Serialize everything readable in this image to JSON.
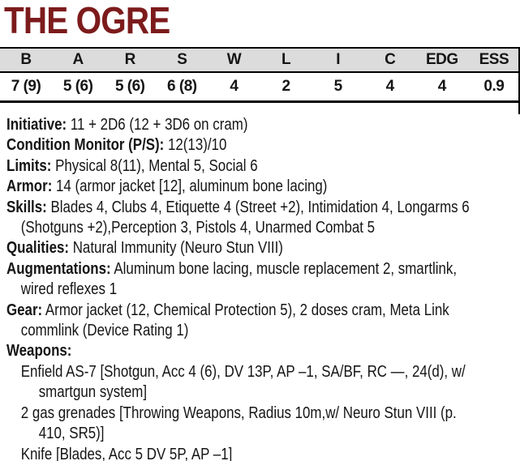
{
  "title": "THE OGRE",
  "colors": {
    "title_color": "#7c1b1c",
    "header_bg": "#dcdcdc",
    "border_color": "#000000",
    "text_color": "#151515"
  },
  "stat_table": {
    "headers": [
      "B",
      "A",
      "R",
      "S",
      "W",
      "L",
      "I",
      "C",
      "EDG",
      "ESS"
    ],
    "values": [
      "7 (9)",
      "5 (6)",
      "5 (6)",
      "6 (8)",
      "4",
      "2",
      "5",
      "4",
      "4",
      "0.9"
    ]
  },
  "lines": [
    {
      "label": "Initiative:",
      "text": " 11 + 2D6 (12 + 3D6 on cram)"
    },
    {
      "label": "Condition Monitor (P/S):",
      "text": " 12(13)/10"
    },
    {
      "label": "Limits:",
      "text": " Physical 8(11), Mental 5, Social 6"
    },
    {
      "label": "Armor:",
      "text": " 14 (armor jacket [12], aluminum bone lacing)"
    },
    {
      "label": "Skills:",
      "text": " Blades 4, Clubs 4, Etiquette 4 (Street +2), Intimidation 4, Longarms 6"
    },
    {
      "label": "",
      "text": "(Shotguns +2),Perception 3, Pistols 4, Unarmed Combat 5"
    },
    {
      "label": "Qualities:",
      "text": " Natural Immunity (Neuro Stun VIII)"
    },
    {
      "label": "Augmentations:",
      "text": " Aluminum bone lacing, muscle replacement 2, smartlink,"
    },
    {
      "label": "",
      "text": "wired reflexes 1"
    },
    {
      "label": "Gear:",
      "text": " Armor jacket (12, Chemical Protection 5), 2 doses cram, Meta Link"
    },
    {
      "label": "",
      "text": "commlink (Device Rating 1)"
    },
    {
      "label": "Weapons:",
      "text": ""
    },
    {
      "label": "",
      "text": "Enfield AS-7 [Shotgun, Acc 4 (6), DV 13P, AP –1, SA/BF, RC —, 24(d), w/"
    },
    {
      "label": "",
      "text": "smartgun system]"
    },
    {
      "label": "",
      "text": "2 gas grenades [Throwing Weapons, Radius 10m,w/ Neuro Stun VIII (p."
    },
    {
      "label": "",
      "text": "410, SR5)]"
    },
    {
      "label": "",
      "text": "Knife [Blades, Acc 5 DV 5P, AP –1]"
    }
  ]
}
